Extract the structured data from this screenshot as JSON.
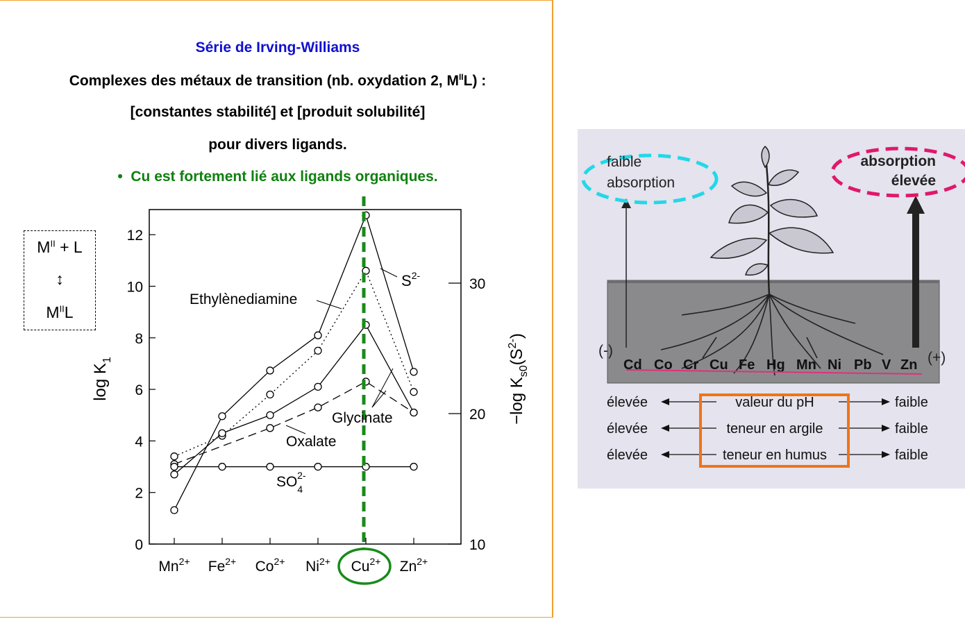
{
  "titles": {
    "line1": "Série de Irving-Williams",
    "line2": "Complexes des métaux de transition (nb. oxydation 2, MIIL) :",
    "line2_pre": "Complexes des métaux de transition (nb. oxydation 2, M",
    "line2_sup": "II",
    "line2_post": "L) :",
    "line3": "[constantes stabilité] et [produit solubilité]",
    "line4": "pour divers ligands.",
    "bullet": "•",
    "line5": "Cu est fortement lié aux ligands organiques."
  },
  "equilibrium": {
    "top_base": "M",
    "top_sup": "II",
    "top_rest": " + L",
    "arrow": "↕",
    "bottom_base": "M",
    "bottom_sup": "II",
    "bottom_rest": "L"
  },
  "chart_data": {
    "type": "line",
    "categories": [
      "Mn2+",
      "Fe2+",
      "Co2+",
      "Ni2+",
      "Cu2+",
      "Zn2+"
    ],
    "category_labels": [
      {
        "base": "Mn",
        "sup": "2+"
      },
      {
        "base": "Fe",
        "sup": "2+"
      },
      {
        "base": "Co",
        "sup": "2+"
      },
      {
        "base": "Ni",
        "sup": "2+"
      },
      {
        "base": "Cu",
        "sup": "2+"
      },
      {
        "base": "Zn",
        "sup": "2+"
      }
    ],
    "y_left": {
      "label_base": "log K",
      "label_sub": "1",
      "lim": [
        0,
        13
      ],
      "ticks": [
        0,
        2,
        4,
        6,
        8,
        10,
        12
      ]
    },
    "y_right": {
      "label": "−log K",
      "label_sub": "s0",
      "label_paren": "(S",
      "label_sup": "2-",
      "label_close": ")",
      "lim": [
        10,
        35.4
      ],
      "ticks": [
        10,
        20,
        30
      ]
    },
    "series": [
      {
        "name": "Ethylènediamine",
        "style": "dotted",
        "x": [
          0,
          1,
          2,
          3,
          4,
          5
        ],
        "values": [
          3.4,
          4.2,
          5.8,
          7.5,
          10.6,
          5.9
        ]
      },
      {
        "name": "S2-",
        "style": "solid",
        "axis": "right",
        "x": [
          0,
          1,
          2,
          3,
          4,
          5
        ],
        "values": [
          12.6,
          19.8,
          23.3,
          26.0,
          35.2,
          23.2
        ]
      },
      {
        "name": "Glycinate",
        "style": "solid",
        "x": [
          0,
          1,
          2,
          3,
          4,
          5
        ],
        "values": [
          2.7,
          4.3,
          5.0,
          6.1,
          8.5,
          5.1
        ]
      },
      {
        "name": "Oxalate",
        "style": "dashed",
        "x": [
          0,
          2,
          3,
          4,
          5
        ],
        "values": [
          3.1,
          4.5,
          5.3,
          6.3,
          5.1
        ]
      },
      {
        "name": "SO42-",
        "style": "solid",
        "x": [
          0,
          1,
          2,
          3,
          4,
          5
        ],
        "values": [
          3.0,
          3.0,
          3.0,
          3.0,
          3.0,
          3.0
        ]
      }
    ],
    "series_labels": {
      "ethylenediamine": "Ethylènediamine",
      "s2_base": "S",
      "s2_sup": "2-",
      "glycinate": "Glycinate",
      "oxalate": "Oxalate",
      "so4_base": "SO",
      "so4_sub": "4",
      "so4_sup": "2-"
    },
    "highlight": {
      "category": "Cu2+",
      "line_color": "#1a8a1a"
    }
  },
  "diagram": {
    "top_left_label_1": "faible",
    "top_left_label_2": "absorption",
    "top_right_label_1": "absorption",
    "top_right_label_2": "élevée",
    "minus_sign": "(-)",
    "plus_sign": "(+)",
    "elements": [
      "Cd",
      "Co",
      "Cr",
      "Cu",
      "Fe",
      "Hg",
      "Mn",
      "Ni",
      "Pb",
      "V",
      "Zn"
    ],
    "rows": [
      {
        "left": "élevée",
        "center": "valeur du pH",
        "right": "faible"
      },
      {
        "left": "élevée",
        "center": "teneur en argile",
        "right": "faible"
      },
      {
        "left": "élevée",
        "center": "teneur en humus",
        "right": "faible"
      }
    ],
    "colors": {
      "cyan": "#22d8e8",
      "magenta": "#e0186a",
      "orange": "#f07418",
      "underline": "#e0307a"
    }
  }
}
